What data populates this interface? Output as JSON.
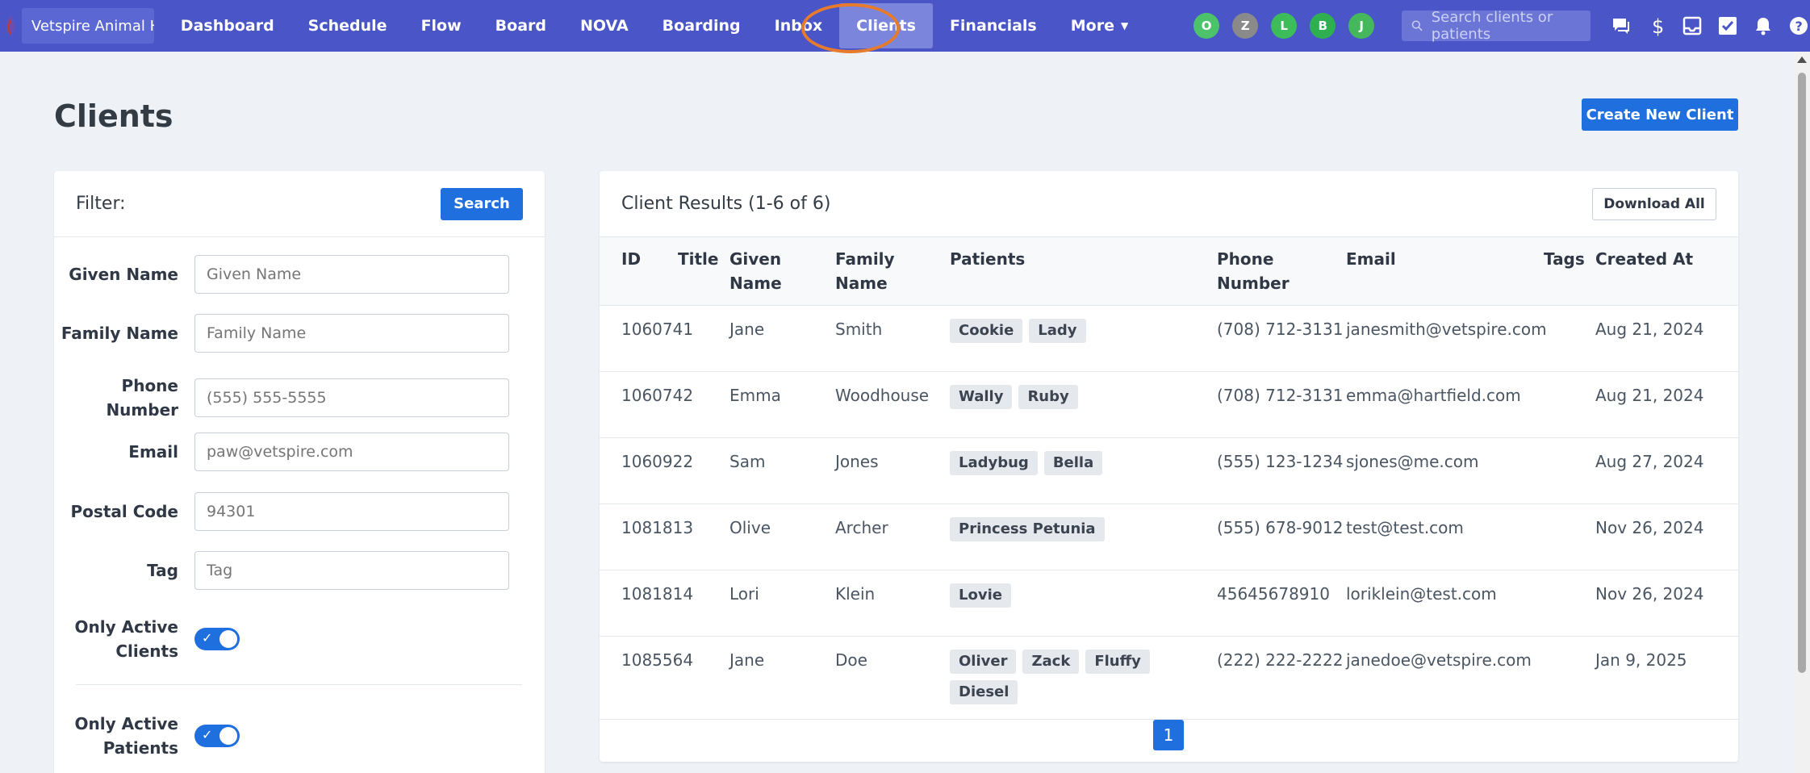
{
  "nav": {
    "org": "Vetspire Animal Hospital",
    "links": [
      "Dashboard",
      "Schedule",
      "Flow",
      "Board",
      "NOVA",
      "Boarding",
      "Inbox",
      "Clients",
      "Financials",
      "More"
    ],
    "avatars": [
      {
        "letter": "O",
        "color": "#4cc26a"
      },
      {
        "letter": "Z",
        "color": "#8a8a8a"
      },
      {
        "letter": "L",
        "color": "#3dbd5a"
      },
      {
        "letter": "B",
        "color": "#2fb050"
      },
      {
        "letter": "J",
        "color": "#45b85b"
      }
    ],
    "search_placeholder": "Search clients or patients",
    "icons": [
      "chat-icon",
      "dollar-icon",
      "inbox-tray-icon",
      "checkbox-icon",
      "bell-icon",
      "help-icon"
    ]
  },
  "page": {
    "title": "Clients",
    "create_label": "Create New Client"
  },
  "filter": {
    "heading": "Filter:",
    "search_label": "Search",
    "fields": [
      {
        "label": "Given Name",
        "placeholder": "Given Name"
      },
      {
        "label": "Family Name",
        "placeholder": "Family Name"
      },
      {
        "label": "Phone Number",
        "placeholder": "(555) 555-5555"
      },
      {
        "label": "Email",
        "placeholder": "paw@vetspire.com"
      },
      {
        "label": "Postal Code",
        "placeholder": "94301"
      },
      {
        "label": "Tag",
        "placeholder": "Tag"
      }
    ],
    "toggles": [
      {
        "label": "Only Active Clients",
        "on": true
      },
      {
        "label": "Only Active Patients",
        "on": true
      }
    ]
  },
  "results": {
    "heading": "Client Results (1-6 of 6)",
    "download_label": "Download All",
    "columns": [
      "ID",
      "Title",
      "Given Name",
      "Family Name",
      "Patients",
      "Phone Number",
      "Email",
      "Tags",
      "Created At"
    ],
    "rows": [
      {
        "id": "1060741",
        "title": "",
        "given": "Jane",
        "family": "Smith",
        "patients": [
          "Cookie",
          "Lady"
        ],
        "phone": "(708) 712-3131",
        "email": "janesmith@vetspire.com",
        "tags": "",
        "created": "Aug 21, 2024"
      },
      {
        "id": "1060742",
        "title": "",
        "given": "Emma",
        "family": "Woodhouse",
        "patients": [
          "Wally",
          "Ruby"
        ],
        "phone": "(708) 712-3131",
        "email": "emma@hartfield.com",
        "tags": "",
        "created": "Aug 21, 2024"
      },
      {
        "id": "1060922",
        "title": "",
        "given": "Sam",
        "family": "Jones",
        "patients": [
          "Ladybug",
          "Bella"
        ],
        "phone": "(555) 123-1234",
        "email": "sjones@me.com",
        "tags": "",
        "created": "Aug 27, 2024"
      },
      {
        "id": "1081813",
        "title": "",
        "given": "Olive",
        "family": "Archer",
        "patients": [
          "Princess Petunia"
        ],
        "phone": "(555) 678-9012",
        "email": "test@test.com",
        "tags": "",
        "created": "Nov 26, 2024"
      },
      {
        "id": "1081814",
        "title": "",
        "given": "Lori",
        "family": "Klein",
        "patients": [
          "Lovie"
        ],
        "phone": "45645678910",
        "email": "loriklein@test.com",
        "tags": "",
        "created": "Nov 26, 2024"
      },
      {
        "id": "1085564",
        "title": "",
        "given": "Jane",
        "family": "Doe",
        "patients": [
          "Oliver",
          "Zack",
          "Fluffy",
          "Diesel"
        ],
        "phone": "(222) 222-2222",
        "email": "janedoe@vetspire.com",
        "tags": "",
        "created": "Jan 9, 2025"
      }
    ],
    "page": "1"
  }
}
